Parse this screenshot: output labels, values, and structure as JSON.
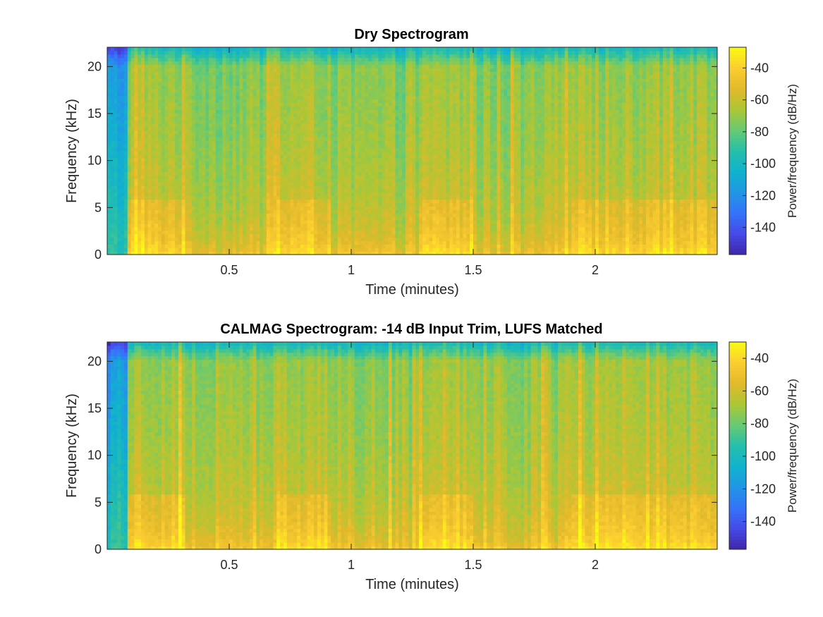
{
  "chart_data": [
    {
      "type": "heatmap",
      "title": "Dry Spectrogram",
      "xlabel": "Time (minutes)",
      "ylabel": "Frequency (kHz)",
      "colorbar_label": "Power/frequency (dB/Hz)",
      "xlim": [
        0,
        2.5
      ],
      "ylim": [
        0,
        22.05
      ],
      "clim": [
        -157,
        -27
      ],
      "x_ticks": [
        0.5,
        1,
        1.5,
        2
      ],
      "x_tick_labels": [
        "0.5",
        "1",
        "1.5",
        "2"
      ],
      "y_ticks": [
        0,
        5,
        10,
        15,
        20
      ],
      "y_tick_labels": [
        "0",
        "5",
        "10",
        "15",
        "20"
      ],
      "colorbar_ticks": [
        -40,
        -60,
        -80,
        -100,
        -120,
        -140
      ],
      "colorbar_tick_labels": [
        "-40",
        "-60",
        "-80",
        "-100",
        "-120",
        "-140"
      ],
      "colormap": "parula",
      "segments_minutes": [
        {
          "start": 0.0,
          "end": 0.08,
          "level": "quiet"
        },
        {
          "start": 0.08,
          "end": 0.32,
          "level": "loud"
        },
        {
          "start": 0.32,
          "end": 0.69,
          "level": "medium"
        },
        {
          "start": 0.69,
          "end": 0.92,
          "level": "loud"
        },
        {
          "start": 0.92,
          "end": 1.28,
          "level": "medium"
        },
        {
          "start": 1.28,
          "end": 1.5,
          "level": "loud"
        },
        {
          "start": 1.5,
          "end": 1.9,
          "level": "medium"
        },
        {
          "start": 1.9,
          "end": 2.5,
          "level": "loud"
        }
      ]
    },
    {
      "type": "heatmap",
      "title": "CALMAG Spectrogram: -14 dB Input Trim, LUFS Matched",
      "xlabel": "Time (minutes)",
      "ylabel": "Frequency (kHz)",
      "colorbar_label": "Power/frequency (dB/Hz)",
      "xlim": [
        0,
        2.5
      ],
      "ylim": [
        0,
        22.05
      ],
      "clim": [
        -157,
        -30
      ],
      "x_ticks": [
        0.5,
        1,
        1.5,
        2
      ],
      "x_tick_labels": [
        "0.5",
        "1",
        "1.5",
        "2"
      ],
      "y_ticks": [
        0,
        5,
        10,
        15,
        20
      ],
      "y_tick_labels": [
        "0",
        "5",
        "10",
        "15",
        "20"
      ],
      "colorbar_ticks": [
        -40,
        -60,
        -80,
        -100,
        -120,
        -140
      ],
      "colorbar_tick_labels": [
        "-40",
        "-60",
        "-80",
        "-100",
        "-120",
        "-140"
      ],
      "colormap": "parula",
      "segments_minutes": [
        {
          "start": 0.0,
          "end": 0.08,
          "level": "quiet"
        },
        {
          "start": 0.08,
          "end": 0.32,
          "level": "loud"
        },
        {
          "start": 0.32,
          "end": 0.69,
          "level": "medium"
        },
        {
          "start": 0.69,
          "end": 0.92,
          "level": "loud"
        },
        {
          "start": 0.92,
          "end": 1.28,
          "level": "medium"
        },
        {
          "start": 1.28,
          "end": 1.5,
          "level": "loud"
        },
        {
          "start": 1.5,
          "end": 1.9,
          "level": "medium"
        },
        {
          "start": 1.9,
          "end": 2.5,
          "level": "loud"
        }
      ]
    }
  ]
}
